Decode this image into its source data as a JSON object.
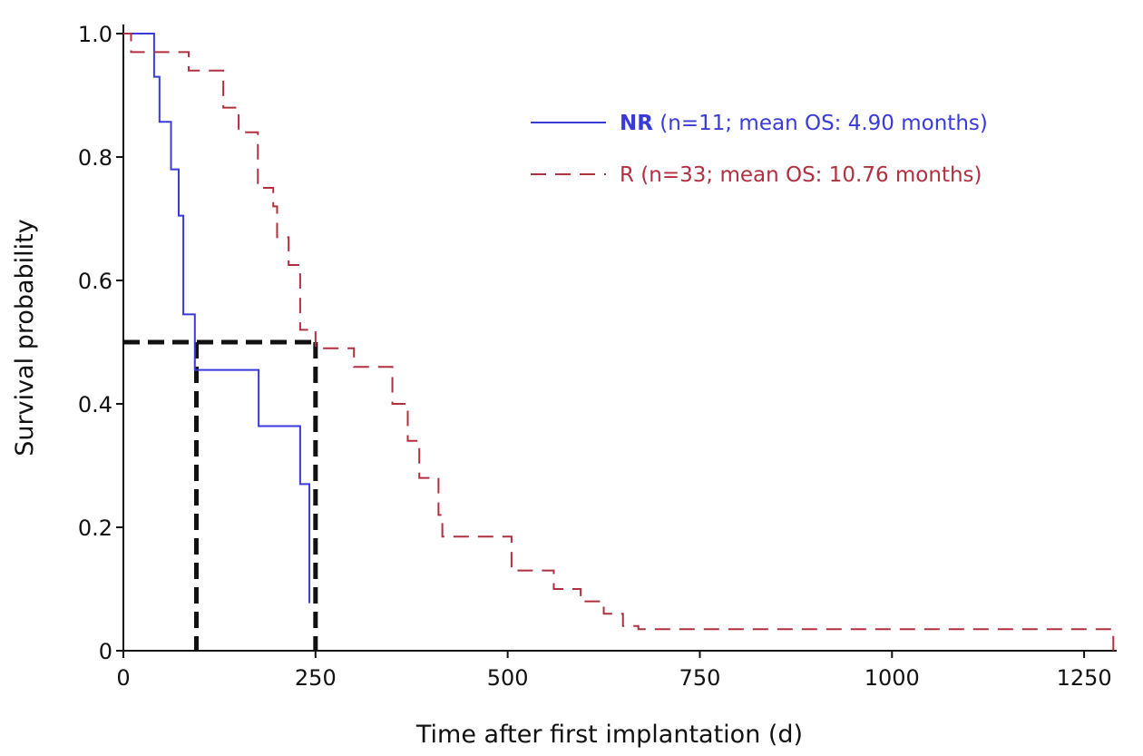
{
  "chart_data": {
    "type": "line",
    "xlabel": "Time after first implantation (d)",
    "ylabel": "Survival probability",
    "xlim": [
      0,
      1290
    ],
    "ylim": [
      0,
      1.0
    ],
    "x_ticks": [
      "0",
      "250",
      "500",
      "750",
      "1000",
      "1250"
    ],
    "x_tick_values": [
      0,
      250,
      500,
      750,
      1000,
      1250
    ],
    "y_ticks": [
      "0",
      "0.2",
      "0.4",
      "0.6",
      "0.8",
      "1.0"
    ],
    "y_tick_values": [
      0,
      0.2,
      0.4,
      0.6,
      0.8,
      1.0
    ],
    "grid": false,
    "legend_position": "top-right",
    "series": [
      {
        "name_prefix": "NR",
        "name_rest": " (n=11; mean OS: 4.90 months)",
        "color": "#3a3ad8",
        "dash": "solid",
        "x": [
          0,
          35,
          40,
          47,
          62,
          72,
          78,
          93,
          172,
          176,
          230,
          242,
          242
        ],
        "y": [
          1.0,
          1.0,
          0.93,
          0.857,
          0.78,
          0.705,
          0.545,
          0.455,
          0.455,
          0.364,
          0.27,
          0.158,
          0.077
        ]
      },
      {
        "name_prefix": "R",
        "name_rest": " (n=33; mean OS: 10.76 months)",
        "color": "#b03040",
        "dash": "dashed",
        "x": [
          0,
          10,
          60,
          85,
          110,
          130,
          150,
          175,
          195,
          200,
          215,
          230,
          250,
          300,
          350,
          370,
          385,
          410,
          415,
          485,
          505,
          560,
          595,
          625,
          650,
          670,
          1285,
          1288
        ],
        "y": [
          1.0,
          0.97,
          0.97,
          0.94,
          0.94,
          0.88,
          0.84,
          0.75,
          0.72,
          0.67,
          0.625,
          0.52,
          0.49,
          0.46,
          0.4,
          0.34,
          0.28,
          0.22,
          0.185,
          0.185,
          0.13,
          0.1,
          0.08,
          0.06,
          0.04,
          0.035,
          0.035,
          0.0
        ]
      }
    ],
    "median_guides": [
      {
        "x": 95,
        "y": 0.5
      },
      {
        "x": 250,
        "y": 0.5
      }
    ]
  }
}
